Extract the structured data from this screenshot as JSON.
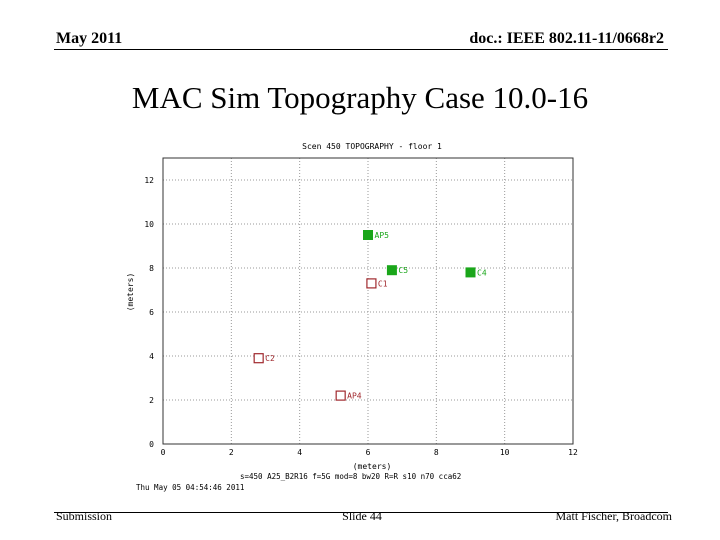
{
  "header": {
    "date": "May 2011",
    "doc": "doc.: IEEE 802.11-11/0668r2"
  },
  "slide": {
    "title": "MAC Sim Topography Case 10.0-16"
  },
  "footer": {
    "left": "Submission",
    "center": "Slide 44",
    "right": "Matt Fischer, Broadcom"
  },
  "chart_data": {
    "type": "scatter",
    "title": "Scen 450 TOPOGRAPHY - floor 1",
    "xlabel": "(meters)",
    "ylabel": "(meters)",
    "xlim": [
      0,
      12
    ],
    "ylim": [
      0,
      13
    ],
    "xticks": [
      0,
      2,
      4,
      6,
      8,
      10,
      12
    ],
    "yticks": [
      0,
      2,
      4,
      6,
      8,
      10,
      12
    ],
    "grid": true,
    "points": [
      {
        "label": "AP5",
        "x": 6.0,
        "y": 9.5,
        "filled": true,
        "color": "#1aa61a"
      },
      {
        "label": "C5",
        "x": 6.7,
        "y": 7.9,
        "filled": true,
        "color": "#1aa61a"
      },
      {
        "label": "C4",
        "x": 9.0,
        "y": 7.8,
        "filled": true,
        "color": "#1aa61a"
      },
      {
        "label": "C1",
        "x": 6.1,
        "y": 7.3,
        "filled": false,
        "color": "#a0282d"
      },
      {
        "label": "C2",
        "x": 2.8,
        "y": 3.9,
        "filled": false,
        "color": "#a0282d"
      },
      {
        "label": "AP4",
        "x": 5.2,
        "y": 2.2,
        "filled": false,
        "color": "#a0282d"
      }
    ],
    "info_line1": "s=450 A25_B2R16 f=5G mod=8 bw20 R=R  s10 n70 cca62",
    "info_line2": "Thu May 05 04:54:46 2011"
  }
}
